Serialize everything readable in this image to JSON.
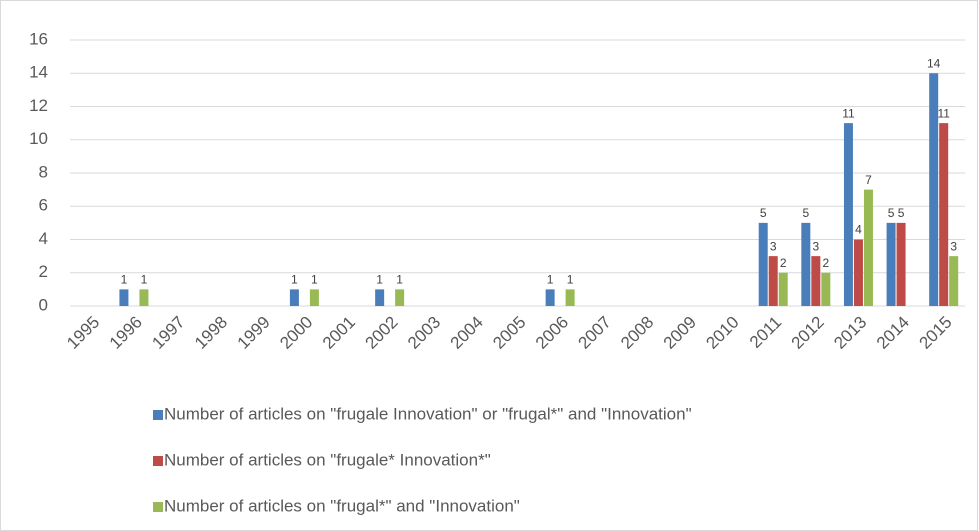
{
  "chart_data": {
    "type": "bar",
    "categories": [
      "1995",
      "1996",
      "1997",
      "1998",
      "1999",
      "2000",
      "2001",
      "2002",
      "2003",
      "2004",
      "2005",
      "2006",
      "2007",
      "2008",
      "2009",
      "2010",
      "2011",
      "2012",
      "2013",
      "2014",
      "2015"
    ],
    "series": [
      {
        "name": "Number of articles on \"frugale Innovation\" or \"frugal*\" and \"Innovation\"",
        "color": "#4a7ebb",
        "values": [
          null,
          1,
          null,
          null,
          null,
          1,
          null,
          1,
          null,
          null,
          null,
          1,
          null,
          null,
          null,
          null,
          5,
          5,
          11,
          5,
          14
        ]
      },
      {
        "name": "Number of articles on \"frugale* Innovation*\"",
        "color": "#be4b48",
        "values": [
          null,
          null,
          null,
          null,
          null,
          null,
          null,
          null,
          null,
          null,
          null,
          null,
          null,
          null,
          null,
          null,
          3,
          3,
          4,
          5,
          11
        ]
      },
      {
        "name": "Number of articles on \"frugal*\" and \"Innovation\"",
        "color": "#98b954",
        "values": [
          null,
          1,
          null,
          null,
          null,
          1,
          null,
          1,
          null,
          null,
          null,
          1,
          null,
          null,
          null,
          null,
          2,
          2,
          7,
          null,
          3
        ]
      }
    ],
    "ylim": [
      0,
      16
    ],
    "yticks": [
      0,
      2,
      4,
      6,
      8,
      10,
      12,
      14,
      16
    ],
    "grid": true,
    "legend": "bottom"
  }
}
